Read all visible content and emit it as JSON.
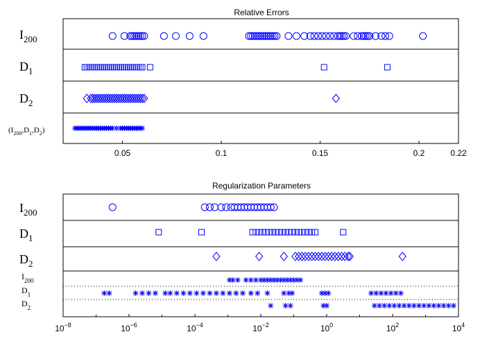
{
  "chart_data": [
    {
      "type": "scatter",
      "title": "Relative Errors",
      "xscale": "linear",
      "xlim": [
        0.02,
        0.22
      ],
      "xticks": [
        "0.05",
        "0.1",
        "0.15",
        "0.2",
        "0.22"
      ],
      "row_labels": [
        {
          "base": "I",
          "sub": "200"
        },
        {
          "base": "D",
          "sub": "1"
        },
        {
          "base": "D",
          "sub": "2"
        },
        {
          "base": "(I",
          "parts": [
            [
              "I",
              "200"
            ],
            [
              ",D",
              "1"
            ],
            [
              ",D",
              "2"
            ],
            [
              ")",
              ""
            ]
          ]
        }
      ],
      "series": [
        {
          "marker": "circle",
          "values": [
            0.045,
            0.051,
            0.054,
            0.055,
            0.056,
            0.057,
            0.058,
            0.059,
            0.06,
            0.061,
            0.071,
            0.077,
            0.084,
            0.091,
            0.114,
            0.115,
            0.116,
            0.117,
            0.118,
            0.119,
            0.12,
            0.121,
            0.122,
            0.123,
            0.124,
            0.125,
            0.126,
            0.127,
            0.128,
            0.134,
            0.138,
            0.142,
            0.145,
            0.147,
            0.149,
            0.151,
            0.153,
            0.155,
            0.157,
            0.159,
            0.16,
            0.161,
            0.162,
            0.163,
            0.167,
            0.169,
            0.171,
            0.172,
            0.173,
            0.174,
            0.175,
            0.178,
            0.181,
            0.183,
            0.185,
            0.202
          ]
        },
        {
          "marker": "square",
          "values": [
            0.031,
            0.032,
            0.033,
            0.034,
            0.035,
            0.036,
            0.037,
            0.038,
            0.039,
            0.04,
            0.041,
            0.042,
            0.043,
            0.044,
            0.045,
            0.046,
            0.047,
            0.048,
            0.049,
            0.05,
            0.051,
            0.052,
            0.053,
            0.054,
            0.055,
            0.056,
            0.057,
            0.058,
            0.059,
            0.06,
            0.064,
            0.152,
            0.184
          ]
        },
        {
          "marker": "diamond",
          "values": [
            0.032,
            0.034,
            0.035,
            0.036,
            0.037,
            0.038,
            0.039,
            0.04,
            0.041,
            0.042,
            0.043,
            0.044,
            0.045,
            0.046,
            0.047,
            0.048,
            0.049,
            0.05,
            0.051,
            0.052,
            0.053,
            0.054,
            0.055,
            0.056,
            0.057,
            0.058,
            0.059,
            0.06,
            0.061,
            0.158
          ]
        },
        {
          "marker": "star",
          "values": [
            0.026,
            0.027,
            0.028,
            0.029,
            0.03,
            0.031,
            0.032,
            0.033,
            0.034,
            0.035,
            0.036,
            0.037,
            0.038,
            0.039,
            0.04,
            0.041,
            0.042,
            0.043,
            0.044,
            0.045,
            0.047,
            0.049,
            0.05,
            0.051,
            0.052,
            0.053,
            0.054,
            0.055,
            0.056,
            0.057,
            0.058,
            0.059,
            0.06
          ]
        }
      ],
      "grid": false,
      "color": "#0000ff"
    },
    {
      "type": "scatter",
      "title": "Regularization Parameters",
      "xscale": "log",
      "xlim_exponent": [
        -8,
        4
      ],
      "xticks": [
        {
          "base": "10",
          "exp": "−8"
        },
        {
          "base": "10",
          "exp": "−6"
        },
        {
          "base": "10",
          "exp": "−4"
        },
        {
          "base": "10",
          "exp": "−2"
        },
        {
          "base": "10",
          "exp": "0"
        },
        {
          "base": "10",
          "exp": "2"
        },
        {
          "base": "10",
          "exp": "4"
        }
      ],
      "row_labels": [
        {
          "base": "I",
          "sub": "200"
        },
        {
          "base": "D",
          "sub": "1"
        },
        {
          "base": "D",
          "sub": "2"
        }
      ],
      "series": [
        {
          "marker": "circle",
          "log10_values": [
            -6.5,
            -3.7,
            -3.55,
            -3.4,
            -3.2,
            -3.05,
            -2.9,
            -2.8,
            -2.7,
            -2.6,
            -2.5,
            -2.4,
            -2.3,
            -2.2,
            -2.1,
            -2.0,
            -1.9,
            -1.8,
            -1.7,
            -1.6
          ]
        },
        {
          "marker": "square",
          "log10_values": [
            -5.1,
            -3.8,
            -2.25,
            -2.15,
            -2.05,
            -1.95,
            -1.85,
            -1.75,
            -1.65,
            -1.55,
            -1.45,
            -1.35,
            -1.25,
            -1.15,
            -1.05,
            -0.95,
            -0.85,
            -0.75,
            -0.65,
            -0.55,
            -0.45,
            -0.35,
            0.5
          ]
        },
        {
          "marker": "diamond",
          "log10_values": [
            -3.35,
            -2.05,
            -1.3,
            -0.95,
            -0.85,
            -0.75,
            -0.65,
            -0.55,
            -0.45,
            -0.35,
            -0.25,
            -0.15,
            -0.05,
            0.05,
            0.15,
            0.25,
            0.35,
            0.45,
            0.55,
            0.65,
            0.7,
            2.3
          ]
        }
      ],
      "combined_rows": [
        {
          "label": {
            "base": "I",
            "sub": "200"
          },
          "log10_values": [
            -2.95,
            -2.85,
            -2.7,
            -2.45,
            -2.3,
            -2.15,
            -2.0,
            -1.9,
            -1.8,
            -1.7,
            -1.6,
            -1.5,
            -1.4,
            -1.3,
            -1.2,
            -1.1,
            -1.0,
            -0.9,
            -0.8
          ]
        },
        {
          "label": {
            "base": "D",
            "sub": "1"
          },
          "log10_values": [
            -6.75,
            -6.6,
            -5.8,
            -5.6,
            -5.4,
            -5.2,
            -4.9,
            -4.75,
            -4.55,
            -4.35,
            -4.15,
            -3.95,
            -3.75,
            -3.55,
            -3.35,
            -3.15,
            -2.95,
            -2.75,
            -2.55,
            -2.3,
            -2.1,
            -1.8,
            -1.3,
            -1.15,
            -1.05,
            -0.15,
            -0.05,
            0.05,
            1.35,
            1.5,
            1.65,
            1.8,
            1.95,
            2.1,
            2.25
          ]
        },
        {
          "label": {
            "base": "D",
            "sub": "2"
          },
          "log10_values": [
            -1.7,
            -1.25,
            -1.1,
            -0.1,
            -0.0,
            1.45,
            1.6,
            1.75,
            1.9,
            2.05,
            2.2,
            2.35,
            2.5,
            2.65,
            2.8,
            2.95,
            3.1,
            3.25,
            3.4,
            3.55,
            3.7,
            3.85
          ]
        }
      ],
      "grid": false,
      "color": "#0000ff"
    }
  ]
}
